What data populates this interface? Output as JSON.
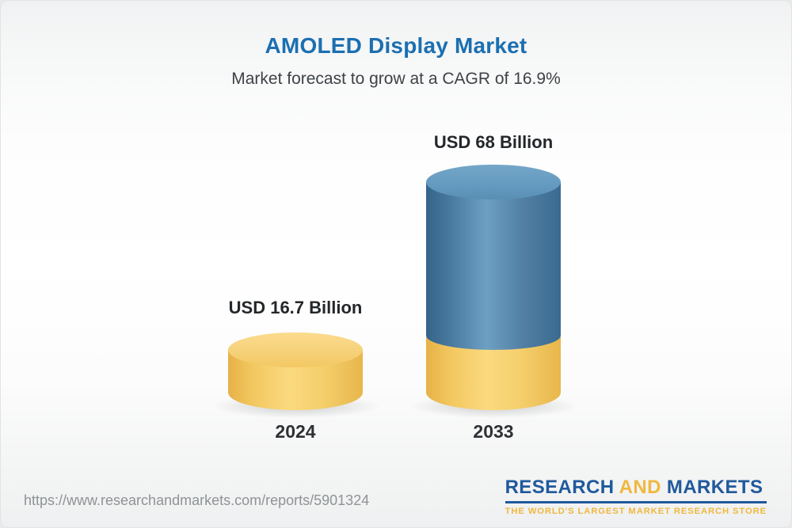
{
  "header": {
    "title": "AMOLED Display Market",
    "subtitle": "Market forecast to grow at a CAGR of 16.9%"
  },
  "chart_data": {
    "type": "bar",
    "style": "3d-cylinder",
    "title": "AMOLED Display Market",
    "subtitle": "Market forecast to grow at a CAGR of 16.9%",
    "cagr_percent": 16.9,
    "unit": "USD Billion",
    "categories": [
      "2024",
      "2033"
    ],
    "values": [
      16.7,
      68
    ],
    "value_labels": [
      "USD 16.7 Billion",
      "USD 68 Billion"
    ],
    "colors": {
      "base_yellow": "#f5cd68",
      "growth_blue": "#4b80a6",
      "title_blue": "#1b6fb1"
    },
    "legend": "none",
    "grid": "off"
  },
  "footer": {
    "url": "https://www.researchandmarkets.com/reports/5901324",
    "logo": {
      "word_research": "RESEARCH",
      "word_and": "AND",
      "word_markets": "MARKETS",
      "tagline": "THE WORLD'S LARGEST MARKET RESEARCH STORE"
    }
  }
}
